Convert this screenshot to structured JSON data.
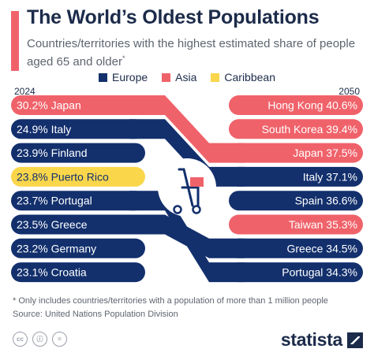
{
  "header": {
    "title": "The World’s Oldest Populations",
    "subtitle": "Countries/territories with the highest estimated share of people aged 65 and older",
    "subtitle_mark": "*"
  },
  "legend": [
    {
      "label": "Europe",
      "color": "#13306d"
    },
    {
      "label": "Asia",
      "color": "#f0626a"
    },
    {
      "label": "Caribbean",
      "color": "#fad64b"
    }
  ],
  "chart_data": {
    "type": "slope",
    "left_year": "2024",
    "right_year": "2050",
    "left": [
      {
        "name": "Japan",
        "value": 30.2,
        "label": "30.2%",
        "region": "Asia"
      },
      {
        "name": "Italy",
        "value": 24.9,
        "label": "24.9%",
        "region": "Europe"
      },
      {
        "name": "Finland",
        "value": 23.9,
        "label": "23.9%",
        "region": "Europe"
      },
      {
        "name": "Puerto Rico",
        "value": 23.8,
        "label": "23.8%",
        "region": "Caribbean"
      },
      {
        "name": "Portugal",
        "value": 23.7,
        "label": "23.7%",
        "region": "Europe"
      },
      {
        "name": "Greece",
        "value": 23.5,
        "label": "23.5%",
        "region": "Europe"
      },
      {
        "name": "Germany",
        "value": 23.2,
        "label": "23.2%",
        "region": "Europe"
      },
      {
        "name": "Croatia",
        "value": 23.1,
        "label": "23.1%",
        "region": "Europe"
      }
    ],
    "right": [
      {
        "name": "Hong Kong",
        "value": 40.6,
        "label": "40.6%",
        "region": "Asia"
      },
      {
        "name": "South Korea",
        "value": 39.4,
        "label": "39.4%",
        "region": "Asia"
      },
      {
        "name": "Japan",
        "value": 37.5,
        "label": "37.5%",
        "region": "Asia"
      },
      {
        "name": "Italy",
        "value": 37.1,
        "label": "37.1%",
        "region": "Europe"
      },
      {
        "name": "Spain",
        "value": 36.6,
        "label": "36.6%",
        "region": "Europe"
      },
      {
        "name": "Taiwan",
        "value": 35.3,
        "label": "35.3%",
        "region": "Asia"
      },
      {
        "name": "Greece",
        "value": 34.5,
        "label": "34.5%",
        "region": "Europe"
      },
      {
        "name": "Portugal",
        "value": 34.3,
        "label": "34.3%",
        "region": "Europe"
      }
    ],
    "links": [
      {
        "from": "Japan",
        "to": "Japan"
      },
      {
        "from": "Italy",
        "to": "Italy"
      },
      {
        "from": "Portugal",
        "to": "Portugal"
      },
      {
        "from": "Greece",
        "to": "Greece"
      }
    ]
  },
  "footer": {
    "footnote": "* Only includes countries/territories with a population of more than 1 million people",
    "source": "Source: United Nations Population Division",
    "license_icons": [
      "cc-icon",
      "by-icon",
      "nd-icon"
    ],
    "brand": "statista"
  }
}
